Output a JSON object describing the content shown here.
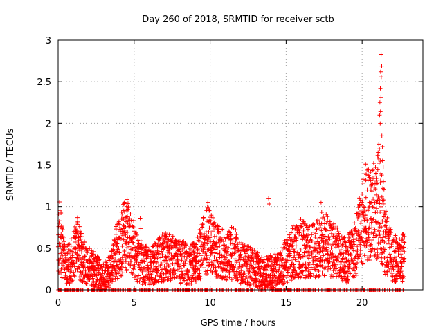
{
  "chart_data": {
    "type": "scatter",
    "title": "Day 260 of 2018, SRMTID for receiver sctb",
    "xlabel": "GPS time / hours",
    "ylabel": "SRMTID / TECUs",
    "xlim": [
      0,
      24
    ],
    "ylim": [
      0,
      3
    ],
    "xticks": [
      "0",
      "5",
      "10",
      "15",
      "20"
    ],
    "xtick_values": [
      0,
      5,
      10,
      15,
      20
    ],
    "yticks": [
      "0",
      "0.5",
      "1",
      "1.5",
      "2",
      "2.5",
      "3"
    ],
    "ytick_values": [
      0,
      0.5,
      1,
      1.5,
      2,
      2.5,
      3
    ],
    "grid": true,
    "marker": "+",
    "color": "#ff0000",
    "series": [
      {
        "name": "SRMTID",
        "profile": [
          [
            0.0,
            0.55
          ],
          [
            0.1,
            0.7
          ],
          [
            0.25,
            0.45
          ],
          [
            0.5,
            0.3
          ],
          [
            0.8,
            0.32
          ],
          [
            1.0,
            0.4
          ],
          [
            1.3,
            0.55
          ],
          [
            1.5,
            0.4
          ],
          [
            1.8,
            0.35
          ],
          [
            2.0,
            0.28
          ],
          [
            2.3,
            0.25
          ],
          [
            2.6,
            0.22
          ],
          [
            2.9,
            0.15
          ],
          [
            3.2,
            0.18
          ],
          [
            3.5,
            0.25
          ],
          [
            3.8,
            0.45
          ],
          [
            4.1,
            0.5
          ],
          [
            4.4,
            0.75
          ],
          [
            4.7,
            0.55
          ],
          [
            5.0,
            0.5
          ],
          [
            5.3,
            0.35
          ],
          [
            5.7,
            0.3
          ],
          [
            6.0,
            0.28
          ],
          [
            6.3,
            0.3
          ],
          [
            6.6,
            0.35
          ],
          [
            7.0,
            0.4
          ],
          [
            7.4,
            0.38
          ],
          [
            7.8,
            0.35
          ],
          [
            8.2,
            0.35
          ],
          [
            8.6,
            0.3
          ],
          [
            9.0,
            0.32
          ],
          [
            9.4,
            0.45
          ],
          [
            9.8,
            0.6
          ],
          [
            10.1,
            0.55
          ],
          [
            10.5,
            0.45
          ],
          [
            11.0,
            0.4
          ],
          [
            11.5,
            0.45
          ],
          [
            12.0,
            0.35
          ],
          [
            12.5,
            0.3
          ],
          [
            13.0,
            0.25
          ],
          [
            13.5,
            0.2
          ],
          [
            14.0,
            0.22
          ],
          [
            14.5,
            0.25
          ],
          [
            15.0,
            0.35
          ],
          [
            15.5,
            0.45
          ],
          [
            16.0,
            0.5
          ],
          [
            16.5,
            0.45
          ],
          [
            17.0,
            0.5
          ],
          [
            17.5,
            0.55
          ],
          [
            18.0,
            0.5
          ],
          [
            18.5,
            0.4
          ],
          [
            19.0,
            0.35
          ],
          [
            19.5,
            0.5
          ],
          [
            19.9,
            0.7
          ],
          [
            20.2,
            0.95
          ],
          [
            20.5,
            0.9
          ],
          [
            20.8,
            0.95
          ],
          [
            21.0,
            1.0
          ],
          [
            21.2,
            0.95
          ],
          [
            21.5,
            0.6
          ],
          [
            21.8,
            0.45
          ],
          [
            22.1,
            0.38
          ],
          [
            22.4,
            0.35
          ],
          [
            22.8,
            0.4
          ]
        ],
        "spikes": [
          [
            1.3,
            0.78
          ],
          [
            4.5,
            1.0
          ],
          [
            5.4,
            0.86
          ],
          [
            9.85,
            1.05
          ],
          [
            13.85,
            1.1
          ],
          [
            17.3,
            1.05
          ],
          [
            20.0,
            1.15
          ],
          [
            20.9,
            1.4
          ],
          [
            21.05,
            1.65
          ],
          [
            21.1,
            1.75
          ],
          [
            21.15,
            2.1
          ],
          [
            21.17,
            2.25
          ],
          [
            21.2,
            2.42
          ],
          [
            21.22,
            2.62
          ],
          [
            21.25,
            2.83
          ],
          [
            21.3,
            1.85
          ],
          [
            21.35,
            1.55
          ],
          [
            21.4,
            1.3
          ]
        ],
        "zero_band": [
          0.0,
          22.8
        ]
      }
    ]
  }
}
